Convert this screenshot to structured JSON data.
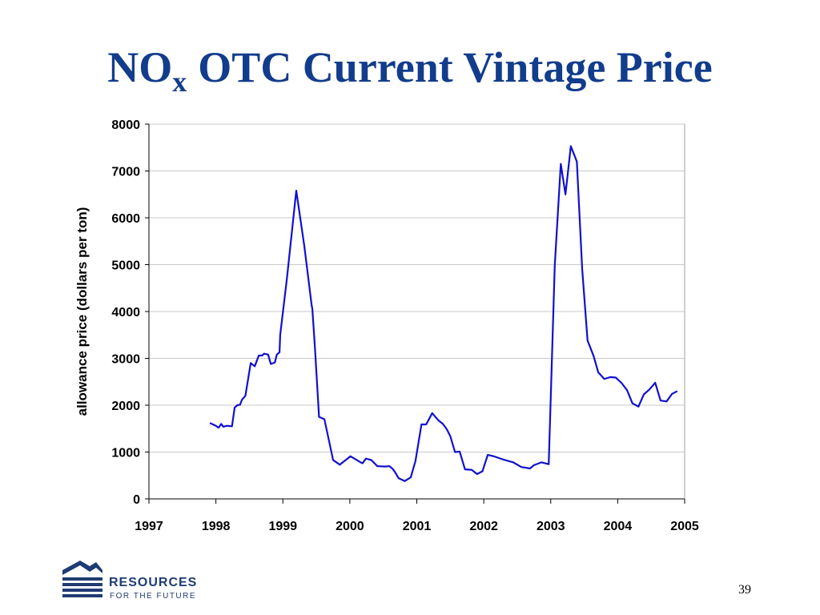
{
  "chart_data": {
    "type": "line",
    "title": [
      "NO",
      "x",
      "OTC Current Vintage Price"
    ],
    "ylabel": "allowance price (dollars per ton)",
    "x": [
      1997.91,
      1998.0,
      1998.04,
      1998.08,
      1998.11,
      1998.16,
      1998.24,
      1998.28,
      1998.32,
      1998.36,
      1998.39,
      1998.44,
      1998.52,
      1998.58,
      1998.64,
      1998.69,
      1998.72,
      1998.78,
      1998.82,
      1998.88,
      1998.91,
      1998.95,
      1998.96,
      1999.06,
      1999.2,
      1999.32,
      1999.43,
      1999.44,
      1999.48,
      1999.54,
      1999.62,
      1999.68,
      1999.75,
      1999.85,
      2000.01,
      2000.16,
      2000.19,
      2000.24,
      2000.32,
      2000.41,
      2000.52,
      2000.59,
      2000.64,
      2000.67,
      2000.73,
      2000.82,
      2000.91,
      2000.98,
      2001.07,
      2001.14,
      2001.23,
      2001.32,
      2001.39,
      2001.45,
      2001.5,
      2001.57,
      2001.64,
      2001.72,
      2001.82,
      2001.9,
      2001.98,
      2002.06,
      2002.15,
      2002.29,
      2002.44,
      2002.56,
      2002.69,
      2002.75,
      2002.86,
      2002.97,
      2003.06,
      2003.15,
      2003.22,
      2003.3,
      2003.39,
      2003.47,
      2003.55,
      2003.64,
      2003.71,
      2003.8,
      2003.89,
      2003.97,
      2004.06,
      2004.14,
      2004.22,
      2004.31,
      2004.39,
      2004.47,
      2004.56,
      2004.64,
      2004.73,
      2004.81,
      2004.89
    ],
    "values": [
      1620,
      1560,
      1520,
      1600,
      1540,
      1560,
      1550,
      1950,
      2000,
      2010,
      2120,
      2200,
      2900,
      2830,
      3060,
      3060,
      3100,
      3080,
      2880,
      2910,
      3080,
      3130,
      3500,
      4700,
      6580,
      5400,
      4130,
      4060,
      3200,
      1750,
      1700,
      1300,
      830,
      730,
      910,
      780,
      760,
      860,
      830,
      700,
      690,
      700,
      640,
      580,
      440,
      380,
      460,
      810,
      1590,
      1590,
      1830,
      1680,
      1600,
      1480,
      1340,
      1000,
      1010,
      630,
      620,
      530,
      590,
      940,
      910,
      840,
      780,
      680,
      650,
      720,
      780,
      740,
      4980,
      7150,
      6500,
      7530,
      7200,
      4900,
      3380,
      3050,
      2700,
      2560,
      2600,
      2590,
      2470,
      2320,
      2040,
      1970,
      2230,
      2330,
      2480,
      2100,
      2080,
      2240,
      2300
    ],
    "color": "#1010d0",
    "xlim": [
      1997,
      2005
    ],
    "xticks": [
      1997,
      1998,
      1999,
      2000,
      2001,
      2002,
      2003,
      2004,
      2005
    ],
    "ylim": [
      0,
      8000
    ],
    "yticks": [
      0,
      1000,
      2000,
      3000,
      4000,
      5000,
      6000,
      7000,
      8000
    ],
    "grid": true
  },
  "logo": {
    "line1": "RESOURCES",
    "line2": "FOR THE FUTURE"
  },
  "page_number": "39"
}
